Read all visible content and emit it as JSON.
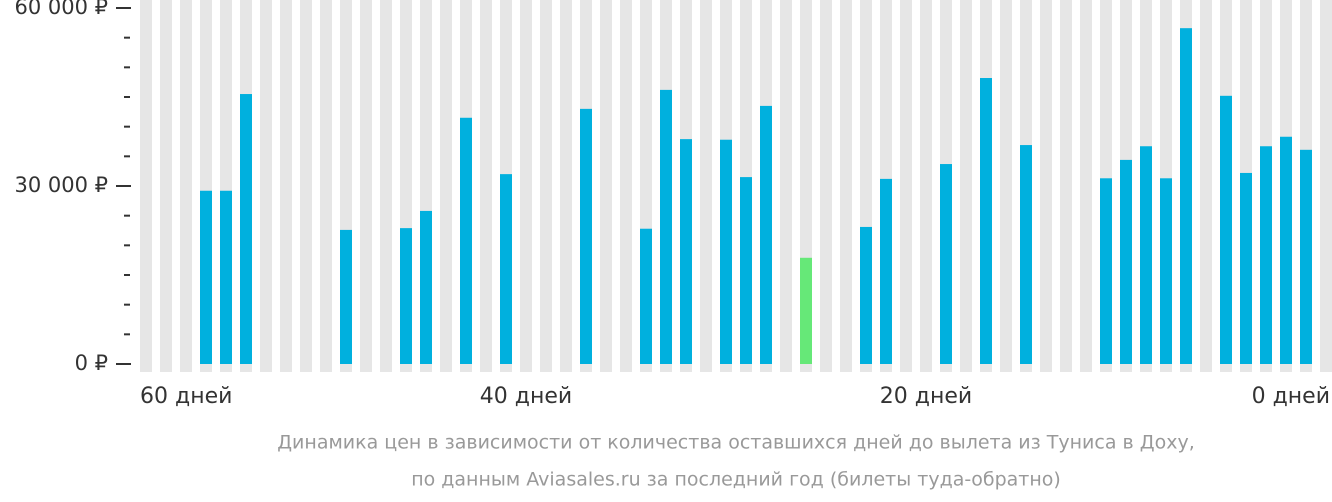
{
  "chart_data": {
    "type": "bar",
    "caption": [
      "Динамика цен в зависимости от количества оставшихся дней до вылета из Туниса в Доху,",
      "по данным Aviasales.ru за последний год (билеты туда-обратно)"
    ],
    "categories": [
      "60 дней",
      null,
      null,
      null,
      null,
      null,
      null,
      null,
      null,
      null,
      null,
      null,
      null,
      null,
      null,
      null,
      null,
      null,
      null,
      "40 дней",
      null,
      null,
      null,
      null,
      null,
      null,
      null,
      null,
      null,
      null,
      null,
      null,
      null,
      null,
      null,
      null,
      null,
      null,
      null,
      "20 дней",
      null,
      null,
      null,
      null,
      null,
      null,
      null,
      null,
      null,
      null,
      null,
      null,
      null,
      null,
      null,
      null,
      null,
      null,
      null,
      "0 дней"
    ],
    "values": [
      null,
      null,
      null,
      29200,
      29200,
      45500,
      null,
      null,
      null,
      null,
      22600,
      null,
      null,
      22900,
      25800,
      null,
      41500,
      null,
      32000,
      null,
      null,
      null,
      43000,
      null,
      null,
      22800,
      46200,
      37900,
      null,
      37800,
      31500,
      43500,
      null,
      17900,
      null,
      null,
      23100,
      31200,
      null,
      null,
      33700,
      null,
      48200,
      null,
      36900,
      null,
      null,
      null,
      31300,
      34400,
      36700,
      31300,
      56600,
      null,
      45200,
      32200,
      36700,
      38300,
      36100,
      null
    ],
    "color": "#00b0de",
    "highlight_color": "#66e878",
    "highlight": 33,
    "background_color": "#e6e6e6",
    "ylim": [
      0,
      60000
    ],
    "yticks": [
      {
        "value": 0,
        "label": "0 ₽"
      },
      {
        "value": 30000,
        "label": "30 000 ₽"
      },
      {
        "value": 60000,
        "label": "60 000 ₽"
      }
    ],
    "minor_yticks": [
      5000,
      10000,
      15000,
      20000,
      25000,
      35000,
      40000,
      45000,
      50000,
      55000
    ]
  }
}
